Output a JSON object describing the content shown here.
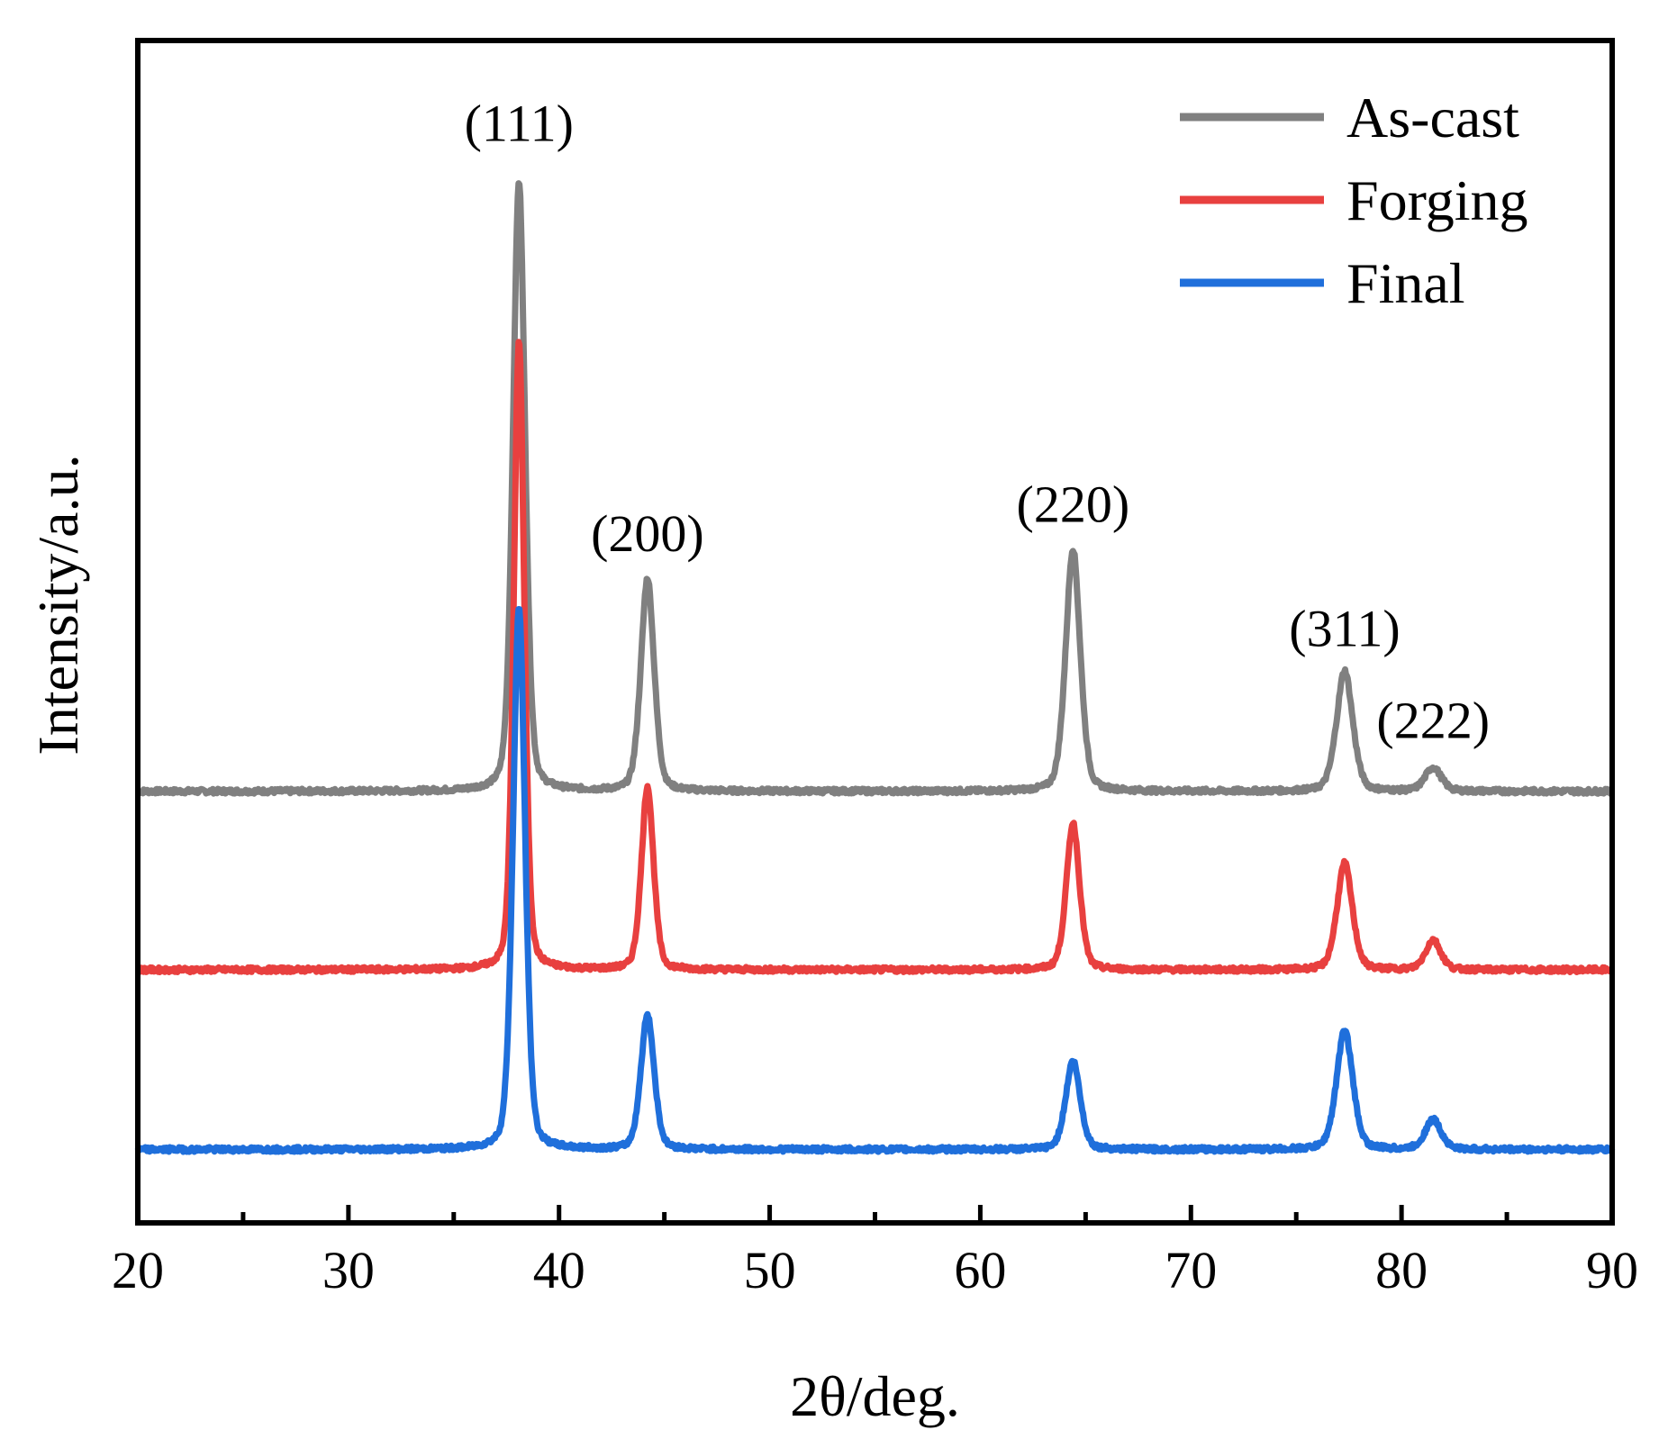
{
  "chart_data": {
    "type": "line",
    "title": "",
    "xlabel": "2θ/deg.",
    "ylabel": "Intensity/a.u.",
    "xlim": [
      20,
      90
    ],
    "ylim": [
      0,
      1
    ],
    "y_ticks_shown": false,
    "grid": false,
    "legend_position": "top-right",
    "x_ticks": [
      20,
      30,
      40,
      50,
      60,
      70,
      80,
      90
    ],
    "x_tick_labels": [
      "20",
      "30",
      "40",
      "50",
      "60",
      "70",
      "80",
      "90"
    ],
    "series": [
      {
        "name": "As-cast",
        "color": "#808080",
        "baseline": 0.365,
        "peaks": [
          {
            "x": 38.1,
            "height": 0.515,
            "width": 0.3
          },
          {
            "x": 44.2,
            "height": 0.18,
            "width": 0.33
          },
          {
            "x": 64.4,
            "height": 0.205,
            "width": 0.36
          },
          {
            "x": 77.3,
            "height": 0.102,
            "width": 0.4
          },
          {
            "x": 81.5,
            "height": 0.02,
            "width": 0.4
          }
        ]
      },
      {
        "name": "Forging",
        "color": "#e8403f",
        "baseline": 0.214,
        "peaks": [
          {
            "x": 38.1,
            "height": 0.532,
            "width": 0.26
          },
          {
            "x": 44.2,
            "height": 0.155,
            "width": 0.3
          },
          {
            "x": 64.4,
            "height": 0.124,
            "width": 0.33
          },
          {
            "x": 77.3,
            "height": 0.09,
            "width": 0.38
          },
          {
            "x": 81.5,
            "height": 0.025,
            "width": 0.38
          }
        ]
      },
      {
        "name": "Final",
        "color": "#1f6fdb",
        "baseline": 0.062,
        "peaks": [
          {
            "x": 38.1,
            "height": 0.458,
            "width": 0.3
          },
          {
            "x": 44.2,
            "height": 0.114,
            "width": 0.33
          },
          {
            "x": 64.4,
            "height": 0.075,
            "width": 0.36
          },
          {
            "x": 77.3,
            "height": 0.101,
            "width": 0.4
          },
          {
            "x": 81.5,
            "height": 0.025,
            "width": 0.4
          }
        ]
      }
    ],
    "annotations": [
      {
        "text": "(111)",
        "x": 38.1,
        "y": 0.915
      },
      {
        "text": "(200)",
        "x": 44.2,
        "y": 0.568
      },
      {
        "text": "(220)",
        "x": 64.4,
        "y": 0.593
      },
      {
        "text": "(311)",
        "x": 77.3,
        "y": 0.488
      },
      {
        "text": "(222)",
        "x": 81.5,
        "y": 0.41
      }
    ]
  }
}
